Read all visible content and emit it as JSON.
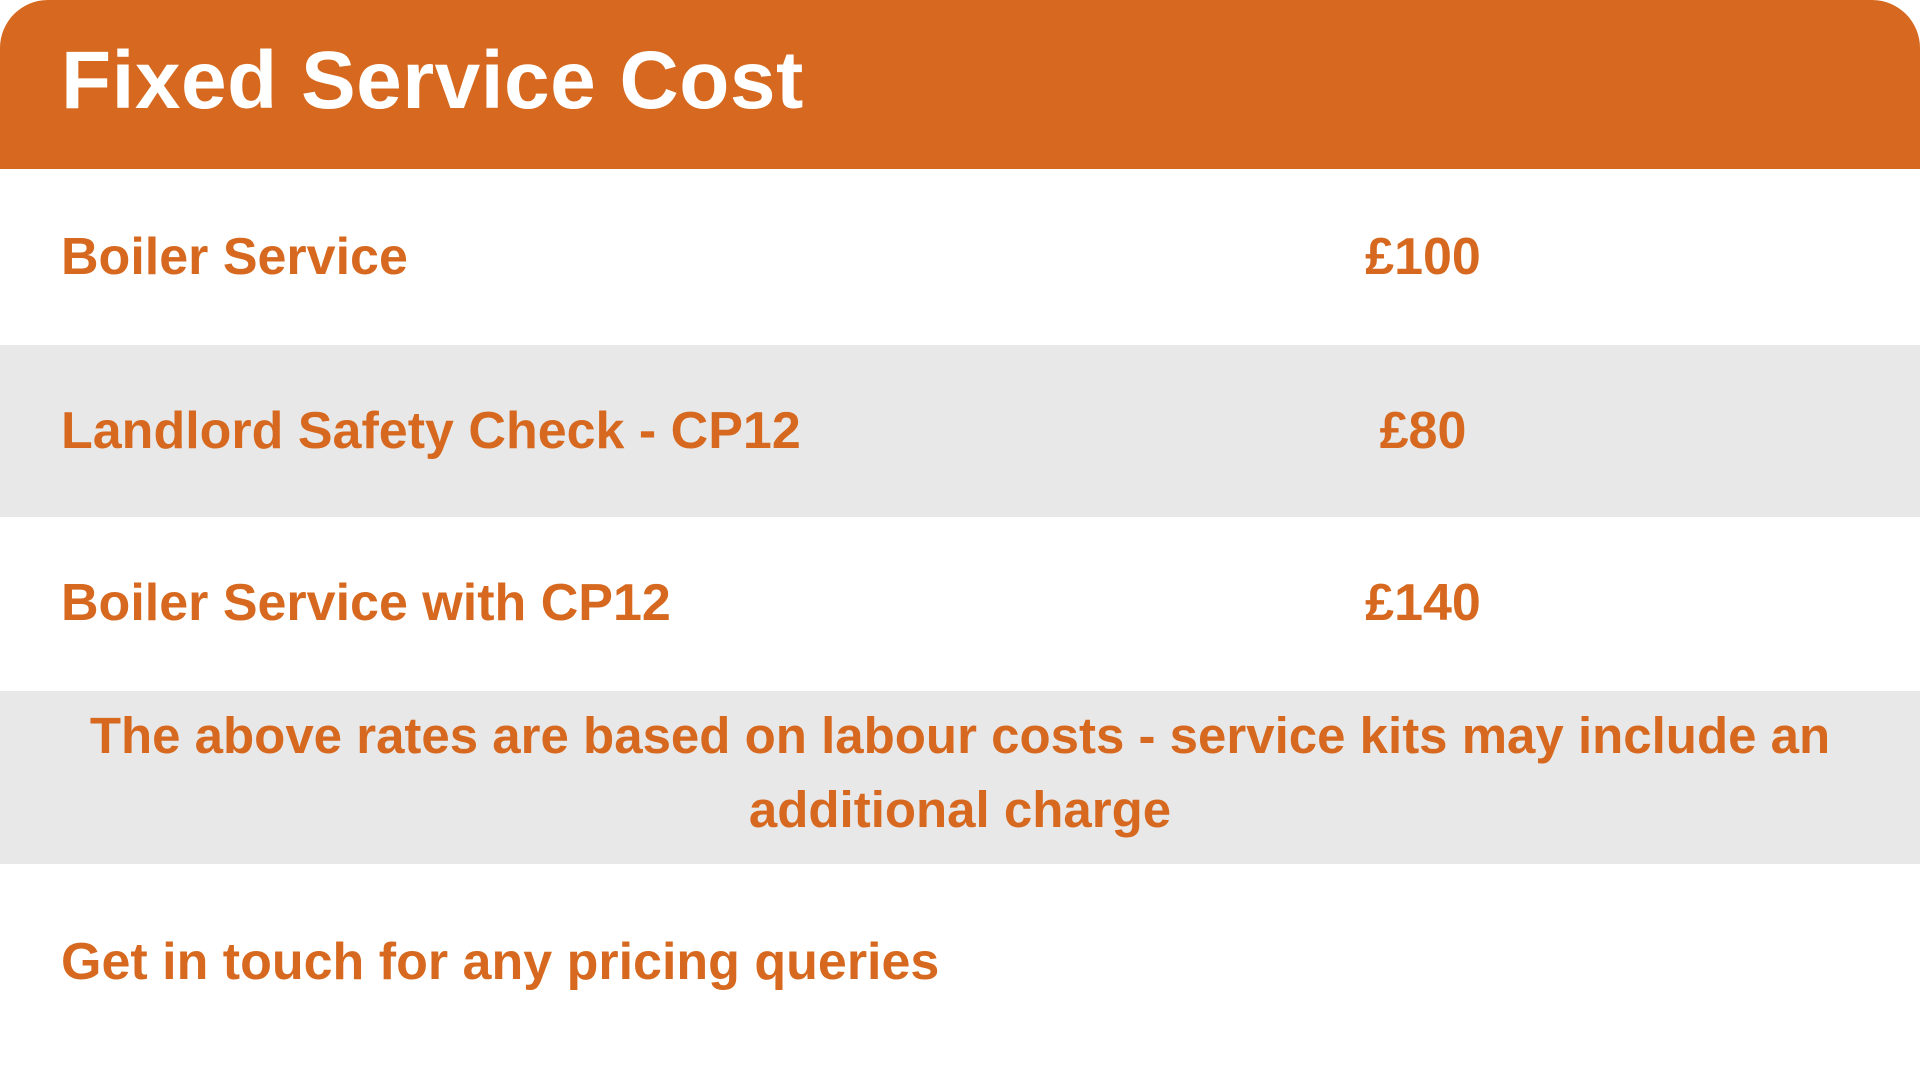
{
  "title": "Fixed Service Cost",
  "items": [
    {
      "label": "Boiler Service",
      "price": "£100"
    },
    {
      "label": "Landlord Safety Check - CP12",
      "price": "£80"
    },
    {
      "label": "Boiler Service with CP12",
      "price": "£140"
    }
  ],
  "note": "The above rates are based on labour costs - service kits may include an additional charge",
  "footer": "Get in touch for any pricing queries",
  "colors": {
    "accent": "#D6691F",
    "stripe": "#E8E8E8",
    "background": "#FFFFFF"
  }
}
